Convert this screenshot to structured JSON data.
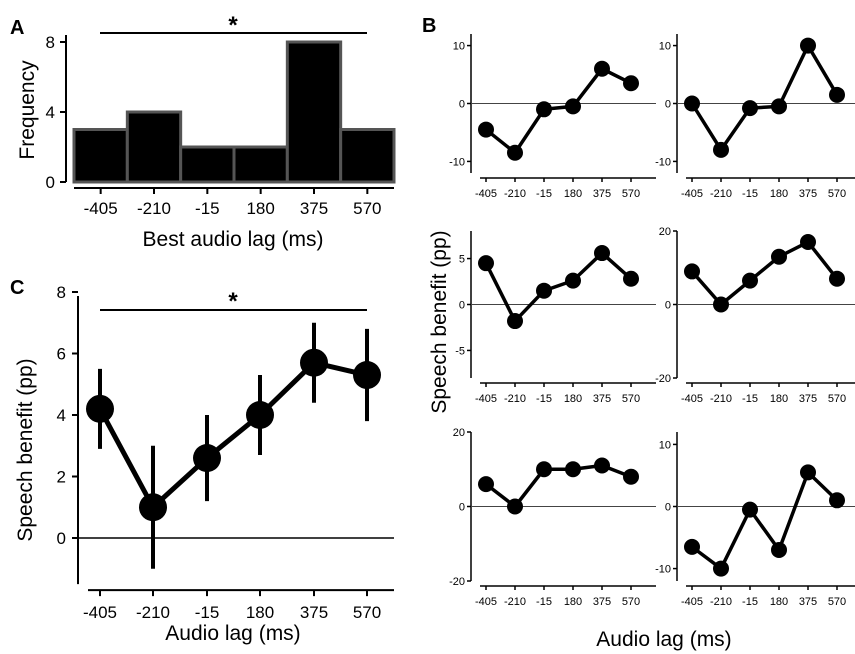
{
  "figure": {
    "panel_a": "A",
    "panel_b": "B",
    "panel_c": "C",
    "b_ylabel": "Speech benefit (pp)",
    "b_xlabel": "Audio lag (ms)"
  },
  "chart_data": [
    {
      "type": "bar",
      "panel": "A",
      "categories": [
        "-405",
        "-210",
        "-15",
        "180",
        "375",
        "570"
      ],
      "values": [
        3,
        4,
        2,
        2,
        8,
        3
      ],
      "xlabel": "Best audio lag (ms)",
      "ylabel": "Frequency",
      "ylim": [
        0,
        8
      ],
      "yticks": [
        "0",
        "4",
        "8"
      ],
      "significance": "*",
      "colors": {
        "bar": "#000000",
        "edge": "#555555"
      }
    },
    {
      "type": "line",
      "panel": "C",
      "x": [
        "-405",
        "-210",
        "-15",
        "180",
        "375",
        "570"
      ],
      "values": [
        4.2,
        1.0,
        2.6,
        4.0,
        5.7,
        5.3
      ],
      "error_low": [
        2.9,
        -1.0,
        1.2,
        2.7,
        4.4,
        3.8
      ],
      "error_high": [
        5.5,
        3.0,
        4.0,
        5.3,
        7.0,
        6.8
      ],
      "xlabel": "Audio lag (ms)",
      "ylabel": "Speech benefit (pp)",
      "ylim": [
        -1.5,
        8
      ],
      "yticks": [
        "0",
        "2",
        "4",
        "6",
        "8"
      ],
      "significance": "*"
    },
    {
      "type": "line",
      "panel": "B1",
      "x": [
        "-405",
        "-210",
        "-15",
        "180",
        "375",
        "570"
      ],
      "values": [
        -4.5,
        -8.5,
        -1.0,
        -0.5,
        6.0,
        3.5
      ],
      "ylim": [
        -12,
        12
      ],
      "yticks": [
        "-10",
        "0",
        "10"
      ]
    },
    {
      "type": "line",
      "panel": "B2",
      "x": [
        "-405",
        "-210",
        "-15",
        "180",
        "375",
        "570"
      ],
      "values": [
        0.0,
        -8.0,
        -0.8,
        -0.5,
        10.0,
        1.5
      ],
      "ylim": [
        -12,
        12
      ],
      "yticks": [
        "-10",
        "0",
        "10"
      ]
    },
    {
      "type": "line",
      "panel": "B3",
      "x": [
        "-405",
        "-210",
        "-15",
        "180",
        "375",
        "570"
      ],
      "values": [
        4.5,
        -1.8,
        1.5,
        2.6,
        5.6,
        2.8
      ],
      "ylim": [
        -8,
        8
      ],
      "yticks": [
        "-5",
        "0",
        "5"
      ]
    },
    {
      "type": "line",
      "panel": "B4",
      "x": [
        "-405",
        "-210",
        "-15",
        "180",
        "375",
        "570"
      ],
      "values": [
        9.0,
        0.0,
        6.5,
        13.0,
        17.0,
        7.0
      ],
      "ylim": [
        -20,
        20
      ],
      "yticks": [
        "-20",
        "0",
        "20"
      ]
    },
    {
      "type": "line",
      "panel": "B5",
      "x": [
        "-405",
        "-210",
        "-15",
        "180",
        "375",
        "570"
      ],
      "values": [
        6.0,
        0.0,
        10.0,
        10.0,
        11.0,
        8.0
      ],
      "ylim": [
        -20,
        20
      ],
      "yticks": [
        "-20",
        "0",
        "20"
      ]
    },
    {
      "type": "line",
      "panel": "B6",
      "x": [
        "-405",
        "-210",
        "-15",
        "180",
        "375",
        "570"
      ],
      "values": [
        -6.5,
        -10.0,
        -0.5,
        -7.0,
        5.5,
        1.0
      ],
      "ylim": [
        -12,
        12
      ],
      "yticks": [
        "-10",
        "0",
        "10"
      ]
    }
  ]
}
